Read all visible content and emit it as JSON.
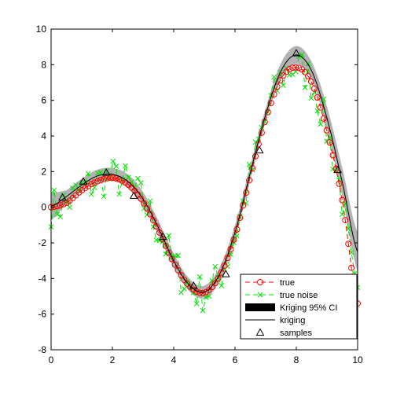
{
  "chart_data": {
    "type": "line",
    "xlim": [
      0,
      10
    ],
    "ylim": [
      -8,
      10
    ],
    "xticks": [
      0,
      2,
      4,
      6,
      8,
      10
    ],
    "yticks": [
      -8,
      -6,
      -4,
      -2,
      0,
      2,
      4,
      6,
      8,
      10
    ],
    "grid": false,
    "legend_position": "bottom-right",
    "title": "",
    "xlabel": "",
    "ylabel": "",
    "curve_x": [
      0,
      0.5,
      1,
      1.5,
      2,
      2.5,
      3,
      3.5,
      4,
      4.5,
      5,
      5.5,
      6,
      6.5,
      7,
      7.5,
      8,
      8.5,
      9,
      9.5,
      10
    ],
    "kriging_y": [
      0.05,
      0.6,
      1.25,
      1.75,
      1.85,
      1.45,
      0.45,
      -1.15,
      -3.0,
      -4.35,
      -4.75,
      -3.75,
      -1.4,
      1.95,
      5.2,
      7.65,
      8.55,
      7.65,
      5.0,
      1.4,
      -2.5
    ],
    "ci_halfwidth": [
      0.8,
      0.35,
      0.35,
      0.35,
      0.35,
      0.4,
      0.4,
      0.4,
      0.4,
      0.35,
      0.35,
      0.4,
      0.4,
      0.4,
      0.35,
      0.45,
      0.5,
      0.5,
      0.65,
      0.8,
      1.1
    ],
    "true_y": [
      0.0,
      0.25,
      0.95,
      1.45,
      1.65,
      1.3,
      0.3,
      -1.3,
      -3.1,
      -4.4,
      -4.8,
      -3.85,
      -1.6,
      1.75,
      4.95,
      7.2,
      7.85,
      7.0,
      4.25,
      0.35,
      -5.4
    ],
    "samples": {
      "x": [
        0.37,
        1.05,
        1.8,
        2.7,
        3.65,
        4.65,
        5.7,
        6.8,
        8.0,
        9.35
      ],
      "y": [
        0.55,
        1.45,
        1.95,
        0.65,
        -1.65,
        -4.4,
        -3.75,
        3.2,
        8.65,
        2.1
      ]
    },
    "noise_seed": 7,
    "noise_points": 100,
    "noise_scale": 2.2,
    "legend": [
      {
        "key": "true",
        "label": "true"
      },
      {
        "key": "noise",
        "label": "true noise"
      },
      {
        "key": "ci",
        "label": "Kriging 95% CI"
      },
      {
        "key": "kriging",
        "label": "kriging"
      },
      {
        "key": "samples",
        "label": "samples"
      }
    ],
    "colors": {
      "true": "#ff0000",
      "noise": "#00e000",
      "ci_band": "#b3b3b3",
      "ci_legend": "#000000",
      "kriging": "#000000",
      "samples": "#000000",
      "axes": "#000000"
    }
  }
}
